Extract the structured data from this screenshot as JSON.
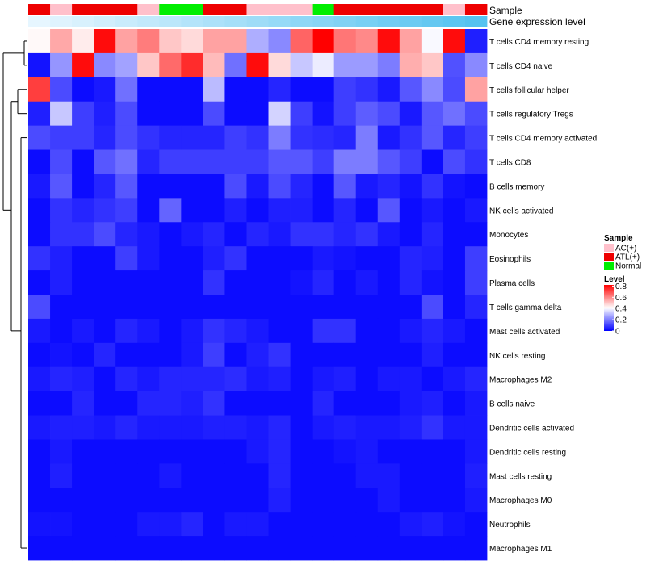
{
  "chart_data": {
    "type": "heatmap",
    "title": "",
    "annotation_tracks": [
      "Sample",
      "Gene expression level"
    ],
    "rows": [
      "T cells CD4 memory resting",
      "T cells CD4 naive",
      "T cells follicular helper",
      "T cells regulatory  Tregs",
      "T cells CD4 memory activated",
      "T cells CD8",
      "B cells memory",
      "NK cells activated",
      "Monocytes",
      "Eosinophils",
      "Plasma cells",
      "T cells gamma delta",
      "Mast cells activated",
      "NK cells resting",
      "Macrophages M2",
      "B cells naive",
      "Dendritic cells activated",
      "Dendritic cells resting",
      "Mast cells resting",
      "Macrophages M0",
      "Neutrophils",
      "Macrophages M1"
    ],
    "sample_groups": [
      "ATL(+)",
      "AC(+)",
      "ATL(+)",
      "ATL(+)",
      "ATL(+)",
      "AC(+)",
      "Normal",
      "Normal",
      "ATL(+)",
      "ATL(+)",
      "AC(+)",
      "AC(+)",
      "AC(+)",
      "Normal",
      "ATL(+)",
      "ATL(+)",
      "ATL(+)",
      "ATL(+)",
      "ATL(+)",
      "AC(+)",
      "ATL(+)"
    ],
    "gene_expression_level": [
      0.02,
      0.06,
      0.1,
      0.14,
      0.18,
      0.22,
      0.26,
      0.3,
      0.34,
      0.38,
      0.42,
      0.46,
      0.5,
      0.54,
      0.58,
      0.62,
      0.66,
      0.7,
      0.74,
      0.78,
      0.82
    ],
    "values": [
      [
        0.42,
        0.55,
        0.44,
        0.8,
        0.56,
        0.62,
        0.5,
        0.47,
        0.56,
        0.56,
        0.28,
        0.22,
        0.66,
        0.82,
        0.63,
        0.6,
        0.8,
        0.56,
        0.4,
        0.8,
        0.05
      ],
      [
        0.03,
        0.24,
        0.8,
        0.22,
        0.26,
        0.5,
        0.65,
        0.75,
        0.52,
        0.18,
        0.8,
        0.47,
        0.32,
        0.38,
        0.25,
        0.25,
        0.2,
        0.54,
        0.5,
        0.13,
        0.22
      ],
      [
        0.72,
        0.12,
        0.02,
        0.04,
        0.18,
        0.02,
        0.02,
        0.02,
        0.3,
        0.02,
        0.02,
        0.06,
        0.02,
        0.02,
        0.1,
        0.08,
        0.04,
        0.14,
        0.22,
        0.12,
        0.56
      ],
      [
        0.05,
        0.32,
        0.1,
        0.05,
        0.12,
        0.02,
        0.02,
        0.02,
        0.12,
        0.02,
        0.02,
        0.34,
        0.1,
        0.03,
        0.1,
        0.15,
        0.12,
        0.04,
        0.14,
        0.18,
        0.12
      ],
      [
        0.12,
        0.1,
        0.1,
        0.06,
        0.12,
        0.08,
        0.06,
        0.06,
        0.06,
        0.1,
        0.08,
        0.2,
        0.08,
        0.07,
        0.06,
        0.2,
        0.04,
        0.08,
        0.14,
        0.06,
        0.1
      ],
      [
        0.02,
        0.12,
        0.02,
        0.14,
        0.18,
        0.06,
        0.1,
        0.1,
        0.1,
        0.1,
        0.1,
        0.14,
        0.14,
        0.1,
        0.2,
        0.2,
        0.14,
        0.1,
        0.02,
        0.12,
        0.08
      ],
      [
        0.04,
        0.14,
        0.02,
        0.06,
        0.14,
        0.02,
        0.02,
        0.02,
        0.02,
        0.12,
        0.04,
        0.12,
        0.06,
        0.02,
        0.14,
        0.04,
        0.06,
        0.03,
        0.08,
        0.03,
        0.02
      ],
      [
        0.02,
        0.08,
        0.06,
        0.08,
        0.1,
        0.02,
        0.16,
        0.02,
        0.02,
        0.05,
        0.02,
        0.05,
        0.05,
        0.02,
        0.06,
        0.02,
        0.14,
        0.02,
        0.04,
        0.02,
        0.04
      ],
      [
        0.02,
        0.08,
        0.08,
        0.12,
        0.06,
        0.04,
        0.02,
        0.04,
        0.06,
        0.02,
        0.06,
        0.04,
        0.08,
        0.08,
        0.06,
        0.08,
        0.04,
        0.02,
        0.06,
        0.02,
        0.02
      ],
      [
        0.08,
        0.05,
        0.02,
        0.02,
        0.1,
        0.04,
        0.02,
        0.02,
        0.05,
        0.08,
        0.02,
        0.02,
        0.02,
        0.04,
        0.03,
        0.02,
        0.02,
        0.06,
        0.05,
        0.02,
        0.1
      ],
      [
        0.02,
        0.05,
        0.02,
        0.02,
        0.02,
        0.02,
        0.02,
        0.02,
        0.08,
        0.02,
        0.02,
        0.02,
        0.03,
        0.06,
        0.02,
        0.04,
        0.02,
        0.06,
        0.03,
        0.02,
        0.1
      ],
      [
        0.12,
        0.02,
        0.02,
        0.02,
        0.02,
        0.02,
        0.02,
        0.02,
        0.02,
        0.02,
        0.02,
        0.02,
        0.02,
        0.02,
        0.02,
        0.02,
        0.02,
        0.02,
        0.12,
        0.02,
        0.06
      ],
      [
        0.04,
        0.02,
        0.04,
        0.02,
        0.06,
        0.04,
        0.02,
        0.04,
        0.08,
        0.06,
        0.04,
        0.02,
        0.02,
        0.08,
        0.08,
        0.02,
        0.02,
        0.04,
        0.06,
        0.04,
        0.02
      ],
      [
        0.02,
        0.03,
        0.02,
        0.06,
        0.02,
        0.02,
        0.02,
        0.04,
        0.1,
        0.02,
        0.05,
        0.08,
        0.02,
        0.02,
        0.02,
        0.02,
        0.02,
        0.02,
        0.05,
        0.02,
        0.02
      ],
      [
        0.04,
        0.06,
        0.05,
        0.02,
        0.06,
        0.04,
        0.06,
        0.06,
        0.06,
        0.07,
        0.04,
        0.05,
        0.02,
        0.04,
        0.05,
        0.02,
        0.04,
        0.04,
        0.02,
        0.04,
        0.06
      ],
      [
        0.02,
        0.02,
        0.06,
        0.02,
        0.02,
        0.06,
        0.06,
        0.05,
        0.08,
        0.02,
        0.02,
        0.02,
        0.02,
        0.06,
        0.02,
        0.02,
        0.02,
        0.04,
        0.05,
        0.02,
        0.04
      ],
      [
        0.04,
        0.05,
        0.05,
        0.04,
        0.06,
        0.04,
        0.04,
        0.04,
        0.05,
        0.05,
        0.04,
        0.06,
        0.02,
        0.04,
        0.05,
        0.04,
        0.04,
        0.05,
        0.08,
        0.04,
        0.04
      ],
      [
        0.02,
        0.04,
        0.02,
        0.02,
        0.02,
        0.02,
        0.02,
        0.02,
        0.02,
        0.02,
        0.04,
        0.06,
        0.02,
        0.02,
        0.03,
        0.04,
        0.02,
        0.02,
        0.02,
        0.02,
        0.04
      ],
      [
        0.02,
        0.05,
        0.02,
        0.02,
        0.02,
        0.02,
        0.04,
        0.02,
        0.02,
        0.02,
        0.02,
        0.06,
        0.02,
        0.02,
        0.02,
        0.04,
        0.04,
        0.02,
        0.02,
        0.02,
        0.05
      ],
      [
        0.02,
        0.02,
        0.02,
        0.02,
        0.02,
        0.02,
        0.02,
        0.02,
        0.02,
        0.02,
        0.02,
        0.05,
        0.02,
        0.02,
        0.02,
        0.02,
        0.04,
        0.02,
        0.02,
        0.02,
        0.04
      ],
      [
        0.03,
        0.03,
        0.02,
        0.02,
        0.02,
        0.04,
        0.04,
        0.06,
        0.02,
        0.04,
        0.04,
        0.02,
        0.02,
        0.02,
        0.02,
        0.02,
        0.02,
        0.04,
        0.05,
        0.03,
        0.02
      ],
      [
        0.02,
        0.02,
        0.02,
        0.02,
        0.02,
        0.02,
        0.02,
        0.02,
        0.02,
        0.02,
        0.02,
        0.02,
        0.02,
        0.02,
        0.02,
        0.02,
        0.02,
        0.02,
        0.02,
        0.02,
        0.02
      ]
    ],
    "dendrogram": {
      "merges": [
        [
          [
            0
          ],
          [
            1
          ]
        ],
        [
          [
            2
          ],
          [
            3
          ]
        ],
        [
          [
            4
          ],
          [
            5
          ]
        ],
        [
          [
            6
          ],
          [
            7
          ]
        ],
        [
          [
            8
          ],
          [
            9
          ]
        ],
        [
          [
            10
          ],
          [
            11
          ]
        ],
        [
          [
            12
          ],
          [
            13
          ]
        ],
        [
          [
            14
          ],
          [
            15
          ]
        ],
        [
          [
            16
          ],
          [
            17
          ]
        ],
        [
          [
            18
          ],
          [
            19
          ]
        ],
        [
          [
            20
          ],
          [
            21
          ]
        ]
      ]
    },
    "legend": {
      "position": "right",
      "sample": {
        "title": "Sample",
        "items": [
          {
            "label": "AC(+)",
            "color": "#ffc0cb"
          },
          {
            "label": "ATL(+)",
            "color": "#ee0000"
          },
          {
            "label": "Normal",
            "color": "#00ee00"
          }
        ]
      },
      "level": {
        "title": "Level",
        "ticks": [
          "0.8",
          "0.6",
          "0.4",
          "0.2",
          "0"
        ],
        "tick_values": [
          0.8,
          0.6,
          0.4,
          0.2,
          0
        ],
        "range": [
          0,
          0.82
        ]
      }
    },
    "colors": {
      "low": "#0000ff",
      "mid": "#ffffff",
      "high": "#ff0000",
      "expr_low": "#eaf7ff",
      "expr_high": "#55c3f0"
    }
  }
}
